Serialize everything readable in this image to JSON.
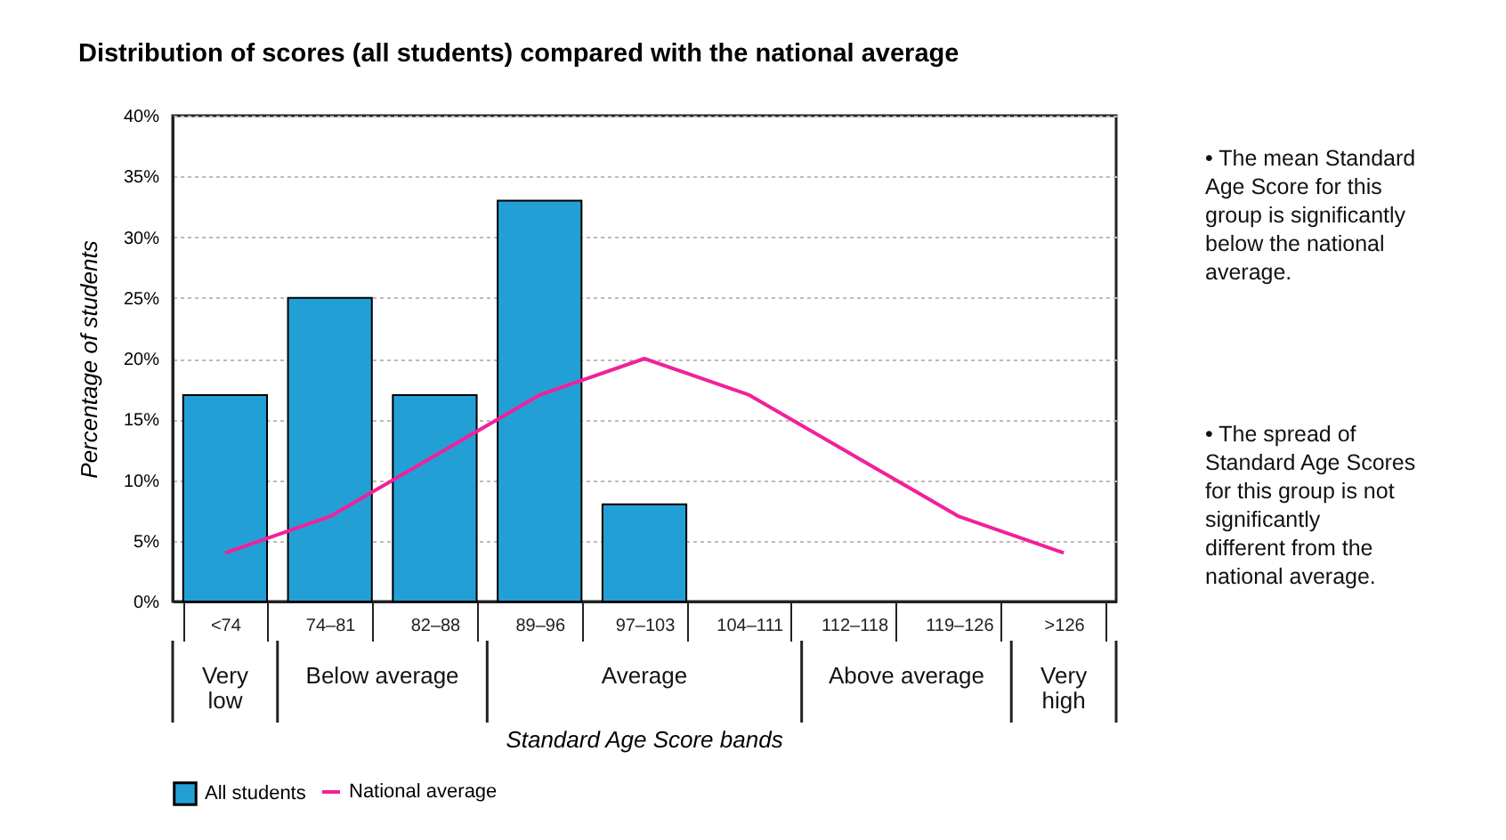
{
  "chart_data": {
    "type": "bar",
    "title": "Distribution of scores (all students) compared with the national average",
    "xlabel": "Standard Age Score bands",
    "ylabel": "Percentage of students",
    "categories": [
      "<74",
      "74–81",
      "82–88",
      "89–96",
      "97–103",
      "104–111",
      "112–118",
      "119–126",
      ">126"
    ],
    "series": [
      {
        "name": "All students",
        "color": "#22a0d6",
        "values": [
          17,
          25,
          17,
          33,
          8,
          0,
          0,
          0,
          0
        ]
      },
      {
        "name": "National average",
        "type": "line",
        "color": "#f0219b",
        "values": [
          4,
          7,
          12,
          17,
          20,
          17,
          12,
          7,
          4
        ]
      }
    ],
    "ylim": [
      0,
      40
    ],
    "yticks": [
      {
        "value": 0,
        "label": "0%"
      },
      {
        "value": 5,
        "label": "5%"
      },
      {
        "value": 10,
        "label": "10%"
      },
      {
        "value": 15,
        "label": "15%"
      },
      {
        "value": 20,
        "label": "20%"
      },
      {
        "value": 25,
        "label": "25%"
      },
      {
        "value": 30,
        "label": "30%"
      },
      {
        "value": 35,
        "label": "35%"
      },
      {
        "value": 40,
        "label": "40%"
      }
    ],
    "grid": "y",
    "legend": "bottom",
    "annotations": [
      "Very low",
      "Below average",
      "Average",
      "Above average",
      "Very high",
      "• The mean Standard Age Score for this group is significantly below the national average.",
      "• The spread of Standard Age Scores for this group is not significantly different from the national average."
    ]
  }
}
